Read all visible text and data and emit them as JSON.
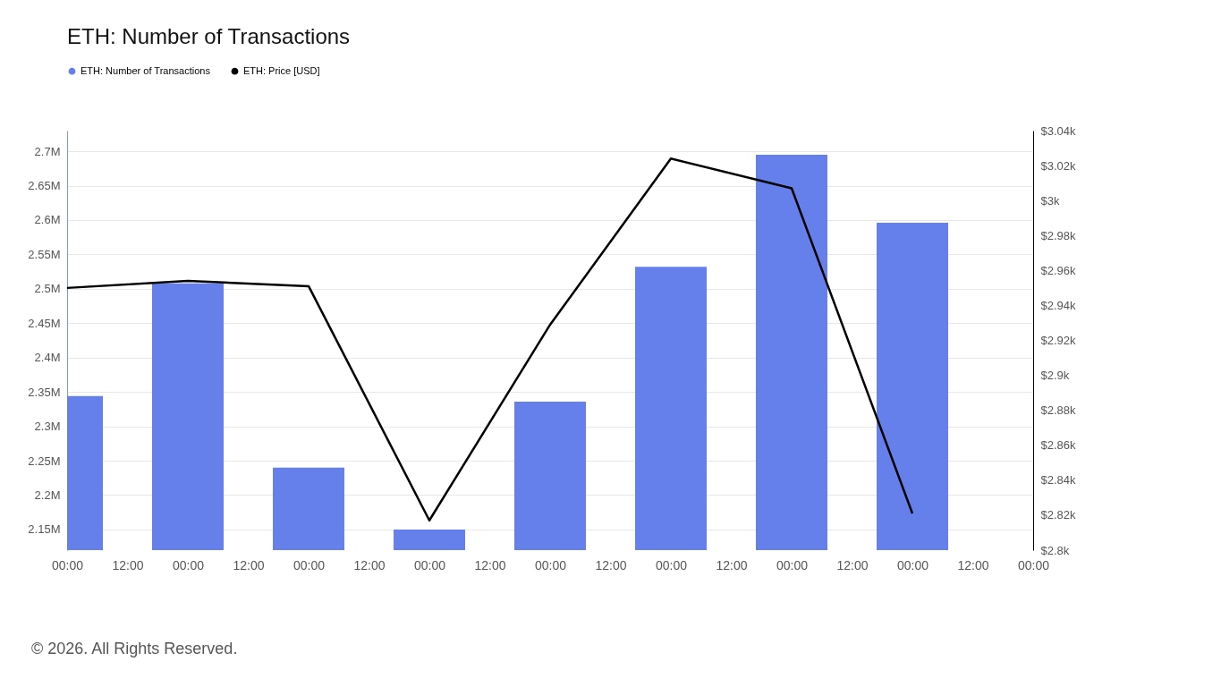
{
  "chart_data": {
    "type": "bar",
    "title": "ETH: Number of Transactions",
    "categories": [
      "00:00",
      "12:00",
      "00:00",
      "12:00",
      "00:00",
      "12:00",
      "00:00",
      "12:00",
      "00:00",
      "12:00",
      "00:00",
      "12:00",
      "00:00",
      "12:00",
      "00:00",
      "12:00",
      "00:00"
    ],
    "series": [
      {
        "name": "ETH: Number of Transactions",
        "color": "#6580ea",
        "values": [
          2344000,
          null,
          2508000,
          null,
          2240000,
          null,
          2150000,
          null,
          2336000,
          null,
          2532000,
          null,
          2695000,
          null,
          2596000,
          null,
          null
        ]
      },
      {
        "name": "ETH: Price [USD]",
        "type": "line",
        "axis": "y2",
        "color": "#000000",
        "values": [
          2950,
          null,
          2954,
          null,
          2951,
          null,
          2817,
          null,
          2929,
          null,
          3024,
          null,
          3007,
          null,
          2821,
          null,
          null
        ]
      }
    ],
    "ylim": [
      2120000,
      2730000
    ],
    "yticks": [
      {
        "value": 2150000,
        "label": "2.15M"
      },
      {
        "value": 2200000,
        "label": "2.2M"
      },
      {
        "value": 2250000,
        "label": "2.25M"
      },
      {
        "value": 2300000,
        "label": "2.3M"
      },
      {
        "value": 2350000,
        "label": "2.35M"
      },
      {
        "value": 2400000,
        "label": "2.4M"
      },
      {
        "value": 2450000,
        "label": "2.45M"
      },
      {
        "value": 2500000,
        "label": "2.5M"
      },
      {
        "value": 2550000,
        "label": "2.55M"
      },
      {
        "value": 2600000,
        "label": "2.6M"
      },
      {
        "value": 2650000,
        "label": "2.65M"
      },
      {
        "value": 2700000,
        "label": "2.7M"
      }
    ],
    "y2lim": [
      2800,
      3040
    ],
    "y2ticks": [
      {
        "value": 2800,
        "label": "$2.8k"
      },
      {
        "value": 2820,
        "label": "$2.82k"
      },
      {
        "value": 2840,
        "label": "$2.84k"
      },
      {
        "value": 2860,
        "label": "$2.86k"
      },
      {
        "value": 2880,
        "label": "$2.88k"
      },
      {
        "value": 2900,
        "label": "$2.9k"
      },
      {
        "value": 2920,
        "label": "$2.92k"
      },
      {
        "value": 2940,
        "label": "$2.94k"
      },
      {
        "value": 2960,
        "label": "$2.96k"
      },
      {
        "value": 2980,
        "label": "$2.98k"
      },
      {
        "value": 3000,
        "label": "$3k"
      },
      {
        "value": 3020,
        "label": "$3.02k"
      },
      {
        "value": 3040,
        "label": "$3.04k"
      }
    ],
    "grid": "y",
    "legend": "top left",
    "annotations": [
      "© 2026. All Rights Reserved."
    ]
  }
}
